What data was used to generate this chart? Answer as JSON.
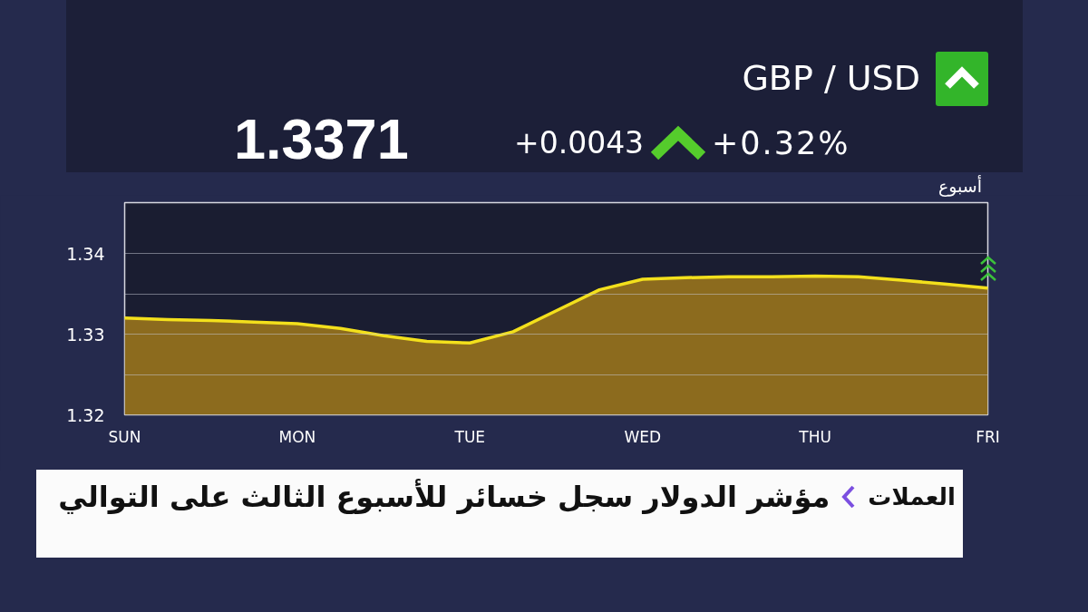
{
  "chart_data": {
    "type": "area",
    "title": "GBP / USD",
    "annotations": [
      "1.3371",
      "+0.0043",
      "+0.32%",
      "أسبوع",
      "العملات",
      "مؤشر الدولار سجل خسائر للأسبوع الثالث على التوالي"
    ],
    "categories": [
      "SUN",
      null,
      null,
      null,
      "MON",
      null,
      null,
      null,
      "TUE",
      null,
      null,
      null,
      "WED",
      null,
      null,
      null,
      "THU",
      null,
      null,
      null,
      "FRI"
    ],
    "ylim": [
      1.32,
      1.3463
    ],
    "yticks": [
      1.32,
      {
        "value": 1.325,
        "label": null
      },
      1.33,
      {
        "value": 1.335,
        "label": null
      },
      1.34
    ],
    "grid": "y",
    "series": [
      {
        "color": "#8c6b1e",
        "values": [
          1.332,
          1.3318,
          1.3317,
          1.3315,
          1.3313,
          1.3307,
          1.3298,
          1.3291,
          1.3289,
          1.3303,
          1.3329,
          1.3355,
          1.3368,
          1.337,
          1.3371,
          1.3371,
          1.3372,
          1.3371,
          1.3367,
          1.3362,
          1.3357
        ]
      }
    ]
  }
}
